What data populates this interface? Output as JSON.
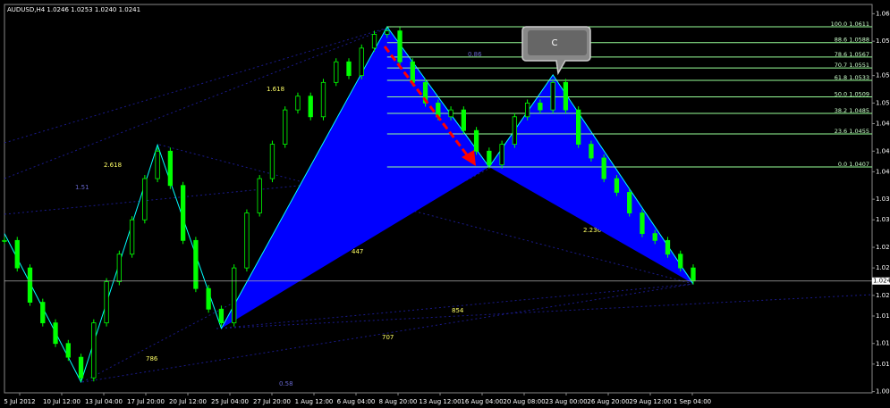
{
  "chart_data": {
    "type": "candlestick",
    "title": "AUDUSD,H4  1.0246 1.0253 1.0240 1.0241",
    "xticks": [
      "5 Jul 2012",
      "10 Jul 12:00",
      "13 Jul 04:00",
      "17 Jul 20:00",
      "20 Jul 12:00",
      "25 Jul 04:00",
      "27 Jul 20:00",
      "1 Aug 12:00",
      "6 Aug 04:00",
      "8 Aug 20:00",
      "13 Aug 12:00",
      "16 Aug 04:00",
      "20 Aug 08:00",
      "23 Aug 00:00",
      "26 Aug 20:00",
      "29 Aug 12:00",
      "1 Sep 04:00"
    ],
    "ylim": [
      1.00782,
      1.06435
    ],
    "yticks": [
      1.063,
      1.059,
      1.054,
      1.05,
      1.047,
      1.043,
      1.04,
      1.036,
      1.033,
      1.029,
      1.026,
      1.022,
      1.019,
      1.015,
      1.012,
      1.008
    ],
    "series": [
      {
        "name": "close",
        "color": "#00ff00",
        "values": [
          1.03,
          1.026,
          1.021,
          1.018,
          1.015,
          1.013,
          1.01,
          1.018,
          1.024,
          1.028,
          1.033,
          1.039,
          1.043,
          1.038,
          1.03,
          1.023,
          1.02,
          1.018,
          1.026,
          1.034,
          1.039,
          1.044,
          1.049,
          1.051,
          1.048,
          1.053,
          1.056,
          1.054,
          1.058,
          1.06,
          1.0605,
          1.056,
          1.053,
          1.05,
          1.048,
          1.049,
          1.046,
          1.043,
          1.041,
          1.044,
          1.048,
          1.05,
          1.049,
          1.053,
          1.049,
          1.044,
          1.042,
          1.039,
          1.037,
          1.034,
          1.031,
          1.03,
          1.028,
          1.026,
          1.0241
        ]
      },
      {
        "name": "zigzag",
        "color": "#0000ff",
        "values": [
          1.031,
          null,
          null,
          null,
          null,
          null,
          1.0094,
          null,
          null,
          null,
          null,
          null,
          1.0439,
          null,
          null,
          null,
          null,
          1.0172,
          null,
          null,
          null,
          null,
          null,
          null,
          null,
          null,
          null,
          null,
          null,
          null,
          1.0611,
          null,
          null,
          null,
          null,
          null,
          null,
          null,
          1.0407,
          null,
          null,
          null,
          null,
          1.0541,
          null,
          null,
          null,
          null,
          null,
          null,
          null,
          null,
          null,
          null,
          1.0237
        ]
      }
    ],
    "fib_levels": [
      {
        "value": 1.0611,
        "label": "100.0  1.0611"
      },
      {
        "value": 1.0588,
        "label": "88.6  1.0588"
      },
      {
        "value": 1.0567,
        "label": "78.6  1.0567"
      },
      {
        "value": 1.0551,
        "label": "70.7  1.0551"
      },
      {
        "value": 1.0533,
        "label": "61.8  1.0533"
      },
      {
        "value": 1.0509,
        "label": "50.0  1.0509"
      },
      {
        "value": 1.0485,
        "label": "38.2  1.0485"
      },
      {
        "value": 1.0455,
        "label": "23.6  1.0455"
      },
      {
        "value": 1.0407,
        "label": "0.0  1.0407"
      }
    ],
    "current_price": {
      "value": 1.0241,
      "label": "1.024"
    },
    "annotations": [
      "1.618",
      "2.618",
      "1.51",
      "447",
      "2.236",
      "854",
      "707",
      "786",
      "0.58",
      "0.86"
    ],
    "callout": "C"
  }
}
